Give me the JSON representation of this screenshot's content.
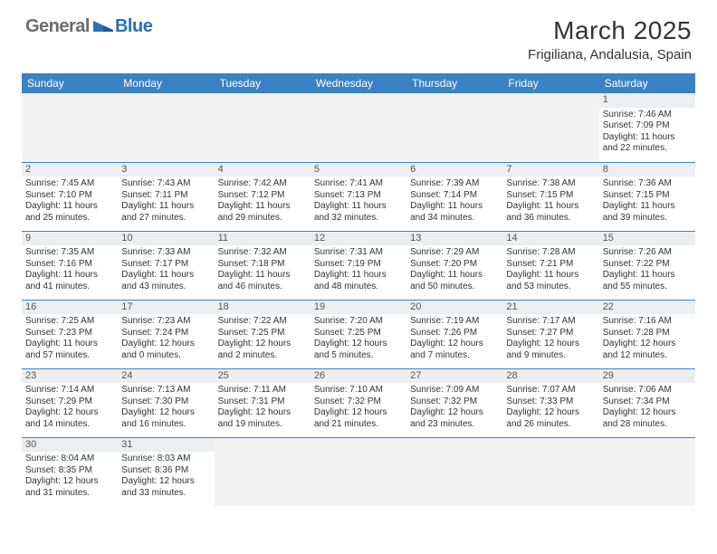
{
  "logo": {
    "text_gray": "General",
    "text_blue": "Blue"
  },
  "title": "March 2025",
  "location": "Frigiliana, Andalusia, Spain",
  "weekdays": [
    "Sunday",
    "Monday",
    "Tuesday",
    "Wednesday",
    "Thursday",
    "Friday",
    "Saturday"
  ],
  "colors": {
    "header_bg": "#3b82c4",
    "logo_gray": "#6b6b6b",
    "logo_blue": "#2a72b5",
    "cell_border": "#3b82c4",
    "daynum_bg": "#eceff1"
  },
  "weeks": [
    [
      null,
      null,
      null,
      null,
      null,
      null,
      {
        "n": "1",
        "sunrise": "Sunrise: 7:46 AM",
        "sunset": "Sunset: 7:09 PM",
        "day1": "Daylight: 11 hours",
        "day2": "and 22 minutes."
      }
    ],
    [
      {
        "n": "2",
        "sunrise": "Sunrise: 7:45 AM",
        "sunset": "Sunset: 7:10 PM",
        "day1": "Daylight: 11 hours",
        "day2": "and 25 minutes."
      },
      {
        "n": "3",
        "sunrise": "Sunrise: 7:43 AM",
        "sunset": "Sunset: 7:11 PM",
        "day1": "Daylight: 11 hours",
        "day2": "and 27 minutes."
      },
      {
        "n": "4",
        "sunrise": "Sunrise: 7:42 AM",
        "sunset": "Sunset: 7:12 PM",
        "day1": "Daylight: 11 hours",
        "day2": "and 29 minutes."
      },
      {
        "n": "5",
        "sunrise": "Sunrise: 7:41 AM",
        "sunset": "Sunset: 7:13 PM",
        "day1": "Daylight: 11 hours",
        "day2": "and 32 minutes."
      },
      {
        "n": "6",
        "sunrise": "Sunrise: 7:39 AM",
        "sunset": "Sunset: 7:14 PM",
        "day1": "Daylight: 11 hours",
        "day2": "and 34 minutes."
      },
      {
        "n": "7",
        "sunrise": "Sunrise: 7:38 AM",
        "sunset": "Sunset: 7:15 PM",
        "day1": "Daylight: 11 hours",
        "day2": "and 36 minutes."
      },
      {
        "n": "8",
        "sunrise": "Sunrise: 7:36 AM",
        "sunset": "Sunset: 7:15 PM",
        "day1": "Daylight: 11 hours",
        "day2": "and 39 minutes."
      }
    ],
    [
      {
        "n": "9",
        "sunrise": "Sunrise: 7:35 AM",
        "sunset": "Sunset: 7:16 PM",
        "day1": "Daylight: 11 hours",
        "day2": "and 41 minutes."
      },
      {
        "n": "10",
        "sunrise": "Sunrise: 7:33 AM",
        "sunset": "Sunset: 7:17 PM",
        "day1": "Daylight: 11 hours",
        "day2": "and 43 minutes."
      },
      {
        "n": "11",
        "sunrise": "Sunrise: 7:32 AM",
        "sunset": "Sunset: 7:18 PM",
        "day1": "Daylight: 11 hours",
        "day2": "and 46 minutes."
      },
      {
        "n": "12",
        "sunrise": "Sunrise: 7:31 AM",
        "sunset": "Sunset: 7:19 PM",
        "day1": "Daylight: 11 hours",
        "day2": "and 48 minutes."
      },
      {
        "n": "13",
        "sunrise": "Sunrise: 7:29 AM",
        "sunset": "Sunset: 7:20 PM",
        "day1": "Daylight: 11 hours",
        "day2": "and 50 minutes."
      },
      {
        "n": "14",
        "sunrise": "Sunrise: 7:28 AM",
        "sunset": "Sunset: 7:21 PM",
        "day1": "Daylight: 11 hours",
        "day2": "and 53 minutes."
      },
      {
        "n": "15",
        "sunrise": "Sunrise: 7:26 AM",
        "sunset": "Sunset: 7:22 PM",
        "day1": "Daylight: 11 hours",
        "day2": "and 55 minutes."
      }
    ],
    [
      {
        "n": "16",
        "sunrise": "Sunrise: 7:25 AM",
        "sunset": "Sunset: 7:23 PM",
        "day1": "Daylight: 11 hours",
        "day2": "and 57 minutes."
      },
      {
        "n": "17",
        "sunrise": "Sunrise: 7:23 AM",
        "sunset": "Sunset: 7:24 PM",
        "day1": "Daylight: 12 hours",
        "day2": "and 0 minutes."
      },
      {
        "n": "18",
        "sunrise": "Sunrise: 7:22 AM",
        "sunset": "Sunset: 7:25 PM",
        "day1": "Daylight: 12 hours",
        "day2": "and 2 minutes."
      },
      {
        "n": "19",
        "sunrise": "Sunrise: 7:20 AM",
        "sunset": "Sunset: 7:25 PM",
        "day1": "Daylight: 12 hours",
        "day2": "and 5 minutes."
      },
      {
        "n": "20",
        "sunrise": "Sunrise: 7:19 AM",
        "sunset": "Sunset: 7:26 PM",
        "day1": "Daylight: 12 hours",
        "day2": "and 7 minutes."
      },
      {
        "n": "21",
        "sunrise": "Sunrise: 7:17 AM",
        "sunset": "Sunset: 7:27 PM",
        "day1": "Daylight: 12 hours",
        "day2": "and 9 minutes."
      },
      {
        "n": "22",
        "sunrise": "Sunrise: 7:16 AM",
        "sunset": "Sunset: 7:28 PM",
        "day1": "Daylight: 12 hours",
        "day2": "and 12 minutes."
      }
    ],
    [
      {
        "n": "23",
        "sunrise": "Sunrise: 7:14 AM",
        "sunset": "Sunset: 7:29 PM",
        "day1": "Daylight: 12 hours",
        "day2": "and 14 minutes."
      },
      {
        "n": "24",
        "sunrise": "Sunrise: 7:13 AM",
        "sunset": "Sunset: 7:30 PM",
        "day1": "Daylight: 12 hours",
        "day2": "and 16 minutes."
      },
      {
        "n": "25",
        "sunrise": "Sunrise: 7:11 AM",
        "sunset": "Sunset: 7:31 PM",
        "day1": "Daylight: 12 hours",
        "day2": "and 19 minutes."
      },
      {
        "n": "26",
        "sunrise": "Sunrise: 7:10 AM",
        "sunset": "Sunset: 7:32 PM",
        "day1": "Daylight: 12 hours",
        "day2": "and 21 minutes."
      },
      {
        "n": "27",
        "sunrise": "Sunrise: 7:09 AM",
        "sunset": "Sunset: 7:32 PM",
        "day1": "Daylight: 12 hours",
        "day2": "and 23 minutes."
      },
      {
        "n": "28",
        "sunrise": "Sunrise: 7:07 AM",
        "sunset": "Sunset: 7:33 PM",
        "day1": "Daylight: 12 hours",
        "day2": "and 26 minutes."
      },
      {
        "n": "29",
        "sunrise": "Sunrise: 7:06 AM",
        "sunset": "Sunset: 7:34 PM",
        "day1": "Daylight: 12 hours",
        "day2": "and 28 minutes."
      }
    ],
    [
      {
        "n": "30",
        "sunrise": "Sunrise: 8:04 AM",
        "sunset": "Sunset: 8:35 PM",
        "day1": "Daylight: 12 hours",
        "day2": "and 31 minutes."
      },
      {
        "n": "31",
        "sunrise": "Sunrise: 8:03 AM",
        "sunset": "Sunset: 8:36 PM",
        "day1": "Daylight: 12 hours",
        "day2": "and 33 minutes."
      },
      null,
      null,
      null,
      null,
      null
    ]
  ]
}
